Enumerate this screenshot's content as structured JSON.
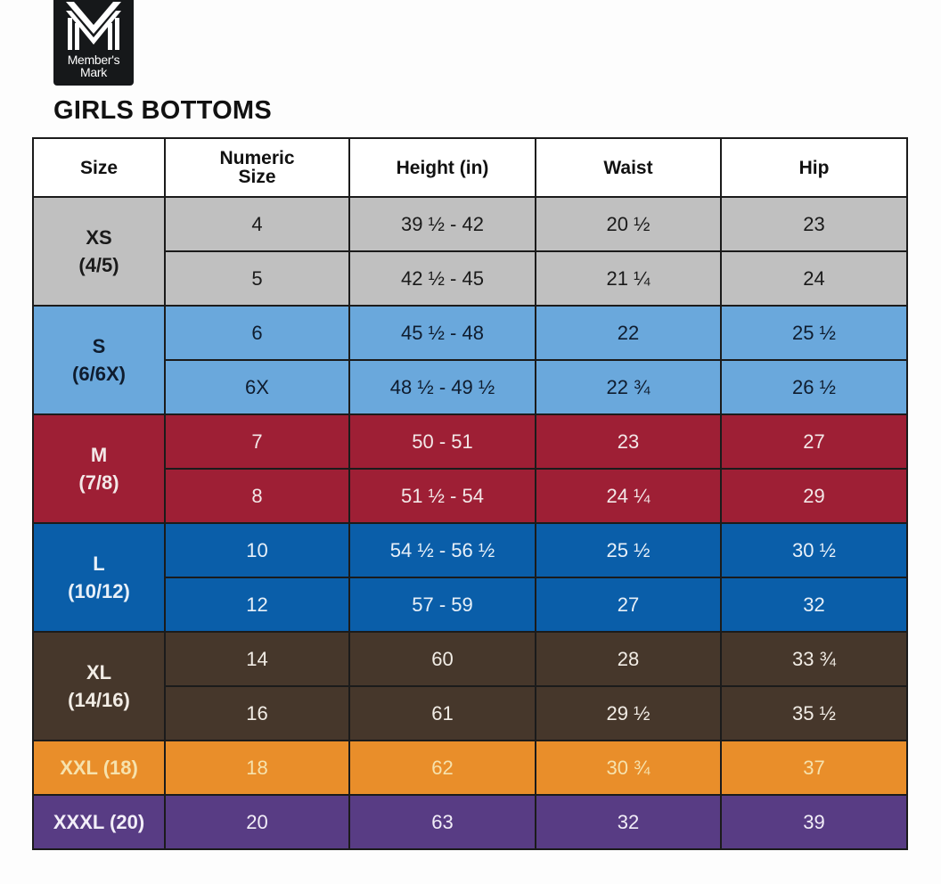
{
  "logo": {
    "brand_line1": "Member's",
    "brand_line2": "Mark",
    "icon": "members-mark-m-icon"
  },
  "title": "GIRLS BOTTOMS",
  "table": {
    "headers": [
      "Size",
      "Numeric Size",
      "Height (in)",
      "Waist",
      "Hip"
    ],
    "header_numeric_line1": "Numeric",
    "header_numeric_line2": "Size",
    "groups": [
      {
        "size": "XS",
        "range": "(4/5)",
        "bg": "#c0c0c0",
        "fg": "#1a1a1a",
        "rows": [
          {
            "numeric": "4",
            "height": "39 ½ - 42",
            "waist": "20 ½",
            "hip": "23"
          },
          {
            "numeric": "5",
            "height": "42 ½ - 45",
            "waist": "21 ¼",
            "hip": "24"
          }
        ]
      },
      {
        "size": "S",
        "range": "(6/6X)",
        "bg": "#6aa8dc",
        "fg": "#0f1c2e",
        "rows": [
          {
            "numeric": "6",
            "height": "45 ½ - 48",
            "waist": "22",
            "hip": "25 ½"
          },
          {
            "numeric": "6X",
            "height": "48 ½ - 49 ½",
            "waist": "22 ¾",
            "hip": "26 ½"
          }
        ]
      },
      {
        "size": "M",
        "range": "(7/8)",
        "bg": "#9e1f35",
        "fg": "#f3e8e8",
        "rows": [
          {
            "numeric": "7",
            "height": "50 - 51",
            "waist": "23",
            "hip": "27"
          },
          {
            "numeric": "8",
            "height": "51 ½ - 54",
            "waist": "24 ¼",
            "hip": "29"
          }
        ]
      },
      {
        "size": "L",
        "range": "(10/12)",
        "bg": "#0a5ea9",
        "fg": "#e8f0f8",
        "rows": [
          {
            "numeric": "10",
            "height": "54 ½ - 56 ½",
            "waist": "25 ½",
            "hip": "30 ½"
          },
          {
            "numeric": "12",
            "height": "57 - 59",
            "waist": "27",
            "hip": "32"
          }
        ]
      },
      {
        "size": "XL",
        "range": "(14/16)",
        "bg": "#46372b",
        "fg": "#f2ede6",
        "rows": [
          {
            "numeric": "14",
            "height": "60",
            "waist": "28",
            "hip": "33 ¾"
          },
          {
            "numeric": "16",
            "height": "61",
            "waist": "29 ½",
            "hip": "35 ½"
          }
        ]
      },
      {
        "size": "XXL (18)",
        "range": "",
        "bg": "#e98e2a",
        "fg": "#f6e2ad",
        "rows": [
          {
            "numeric": "18",
            "height": "62",
            "waist": "30 ¾",
            "hip": "37"
          }
        ]
      },
      {
        "size": "XXXL (20)",
        "range": "",
        "bg": "#583c84",
        "fg": "#f2eef8",
        "rows": [
          {
            "numeric": "20",
            "height": "63",
            "waist": "32",
            "hip": "39"
          }
        ]
      }
    ]
  },
  "chart_data": {
    "type": "table",
    "title": "GIRLS BOTTOMS",
    "columns": [
      "Size",
      "Numeric Size",
      "Height (in)",
      "Waist",
      "Hip"
    ],
    "rows": [
      [
        "XS (4/5)",
        "4",
        "39 ½ - 42",
        "20 ½",
        "23"
      ],
      [
        "XS (4/5)",
        "5",
        "42 ½ - 45",
        "21 ¼",
        "24"
      ],
      [
        "S (6/6X)",
        "6",
        "45 ½ - 48",
        "22",
        "25 ½"
      ],
      [
        "S (6/6X)",
        "6X",
        "48 ½ - 49 ½",
        "22 ¾",
        "26 ½"
      ],
      [
        "M (7/8)",
        "7",
        "50 - 51",
        "23",
        "27"
      ],
      [
        "M (7/8)",
        "8",
        "51 ½ - 54",
        "24 ¼",
        "29"
      ],
      [
        "L (10/12)",
        "10",
        "54 ½ - 56 ½",
        "25 ½",
        "30 ½"
      ],
      [
        "L (10/12)",
        "12",
        "57 - 59",
        "27",
        "32"
      ],
      [
        "XL (14/16)",
        "14",
        "60",
        "28",
        "33 ¾"
      ],
      [
        "XL (14/16)",
        "16",
        "61",
        "29 ½",
        "35 ½"
      ],
      [
        "XXL (18)",
        "18",
        "62",
        "30 ¾",
        "37"
      ],
      [
        "XXXL (20)",
        "20",
        "63",
        "32",
        "39"
      ]
    ],
    "row_group_colors": {
      "XS": "#c0c0c0",
      "S": "#6aa8dc",
      "M": "#9e1f35",
      "L": "#0a5ea9",
      "XL": "#46372b",
      "XXL": "#e98e2a",
      "XXXL": "#583c84"
    }
  }
}
